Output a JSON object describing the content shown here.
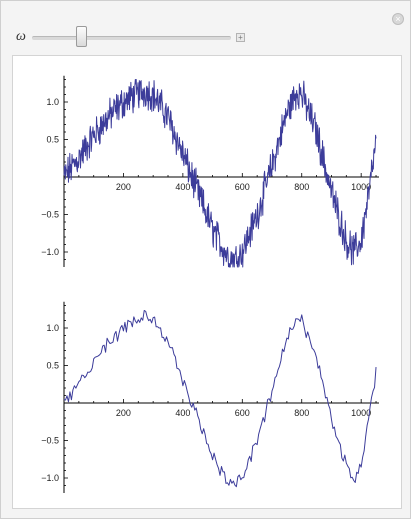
{
  "controls": {
    "variable_label": "ω",
    "slider_value": 0.25,
    "close_glyph": "×",
    "plus_glyph": "+"
  },
  "icons": {
    "close": "close-icon",
    "expand": "plus-icon"
  },
  "colors": {
    "series": "#3c3c9a",
    "axis": "#000000",
    "panel_bg": "#f4f4f4"
  },
  "chart_data": [
    {
      "type": "line",
      "title": "",
      "xlabel": "",
      "ylabel": "",
      "xlim": [
        0,
        1060
      ],
      "ylim": [
        -1.2,
        1.35
      ],
      "x_ticks": [
        200,
        400,
        600,
        800,
        1000
      ],
      "y_ticks": [
        -1.0,
        -0.5,
        0.5,
        1.0
      ],
      "x_tick_labels": [
        "200",
        "400",
        "600",
        "800",
        "1000"
      ],
      "y_tick_labels": [
        "−1.0",
        "−0.5",
        "0.5",
        "1.0"
      ],
      "grid": false,
      "series": [
        {
          "x": [
            0,
            50,
            100,
            150,
            200,
            250,
            275,
            300,
            350,
            400,
            450,
            500,
            550,
            575,
            600,
            650,
            700,
            750,
            785,
            800,
            850,
            900,
            950,
            975,
            1000,
            1030,
            1050
          ],
          "values": [
            0.0,
            0.25,
            0.55,
            0.8,
            1.0,
            1.12,
            1.15,
            1.1,
            0.8,
            0.3,
            -0.2,
            -0.7,
            -1.05,
            -1.1,
            -1.0,
            -0.5,
            0.15,
            0.85,
            1.15,
            1.1,
            0.6,
            -0.2,
            -0.85,
            -1.0,
            -0.85,
            -0.1,
            0.45
          ],
          "noise_amplitude": 0.18
        }
      ]
    },
    {
      "type": "line",
      "title": "",
      "xlabel": "",
      "ylabel": "",
      "xlim": [
        0,
        1060
      ],
      "ylim": [
        -1.2,
        1.35
      ],
      "x_ticks": [
        200,
        400,
        600,
        800,
        1000
      ],
      "y_ticks": [
        -1.0,
        -0.5,
        0.5,
        1.0
      ],
      "x_tick_labels": [
        "200",
        "400",
        "600",
        "800",
        "1000"
      ],
      "y_tick_labels": [
        "−1.0",
        "−0.5",
        "0.5",
        "1.0"
      ],
      "grid": false,
      "series": [
        {
          "x": [
            0,
            50,
            100,
            150,
            200,
            250,
            275,
            300,
            350,
            400,
            450,
            500,
            550,
            575,
            600,
            650,
            700,
            750,
            785,
            800,
            850,
            900,
            950,
            975,
            1000,
            1030,
            1050
          ],
          "values": [
            0.0,
            0.25,
            0.55,
            0.8,
            1.0,
            1.12,
            1.15,
            1.1,
            0.8,
            0.3,
            -0.2,
            -0.7,
            -1.05,
            -1.1,
            -1.0,
            -0.5,
            0.15,
            0.85,
            1.15,
            1.1,
            0.6,
            -0.2,
            -0.85,
            -1.0,
            -0.85,
            -0.1,
            0.45
          ],
          "noise_amplitude": 0.07
        }
      ]
    }
  ]
}
